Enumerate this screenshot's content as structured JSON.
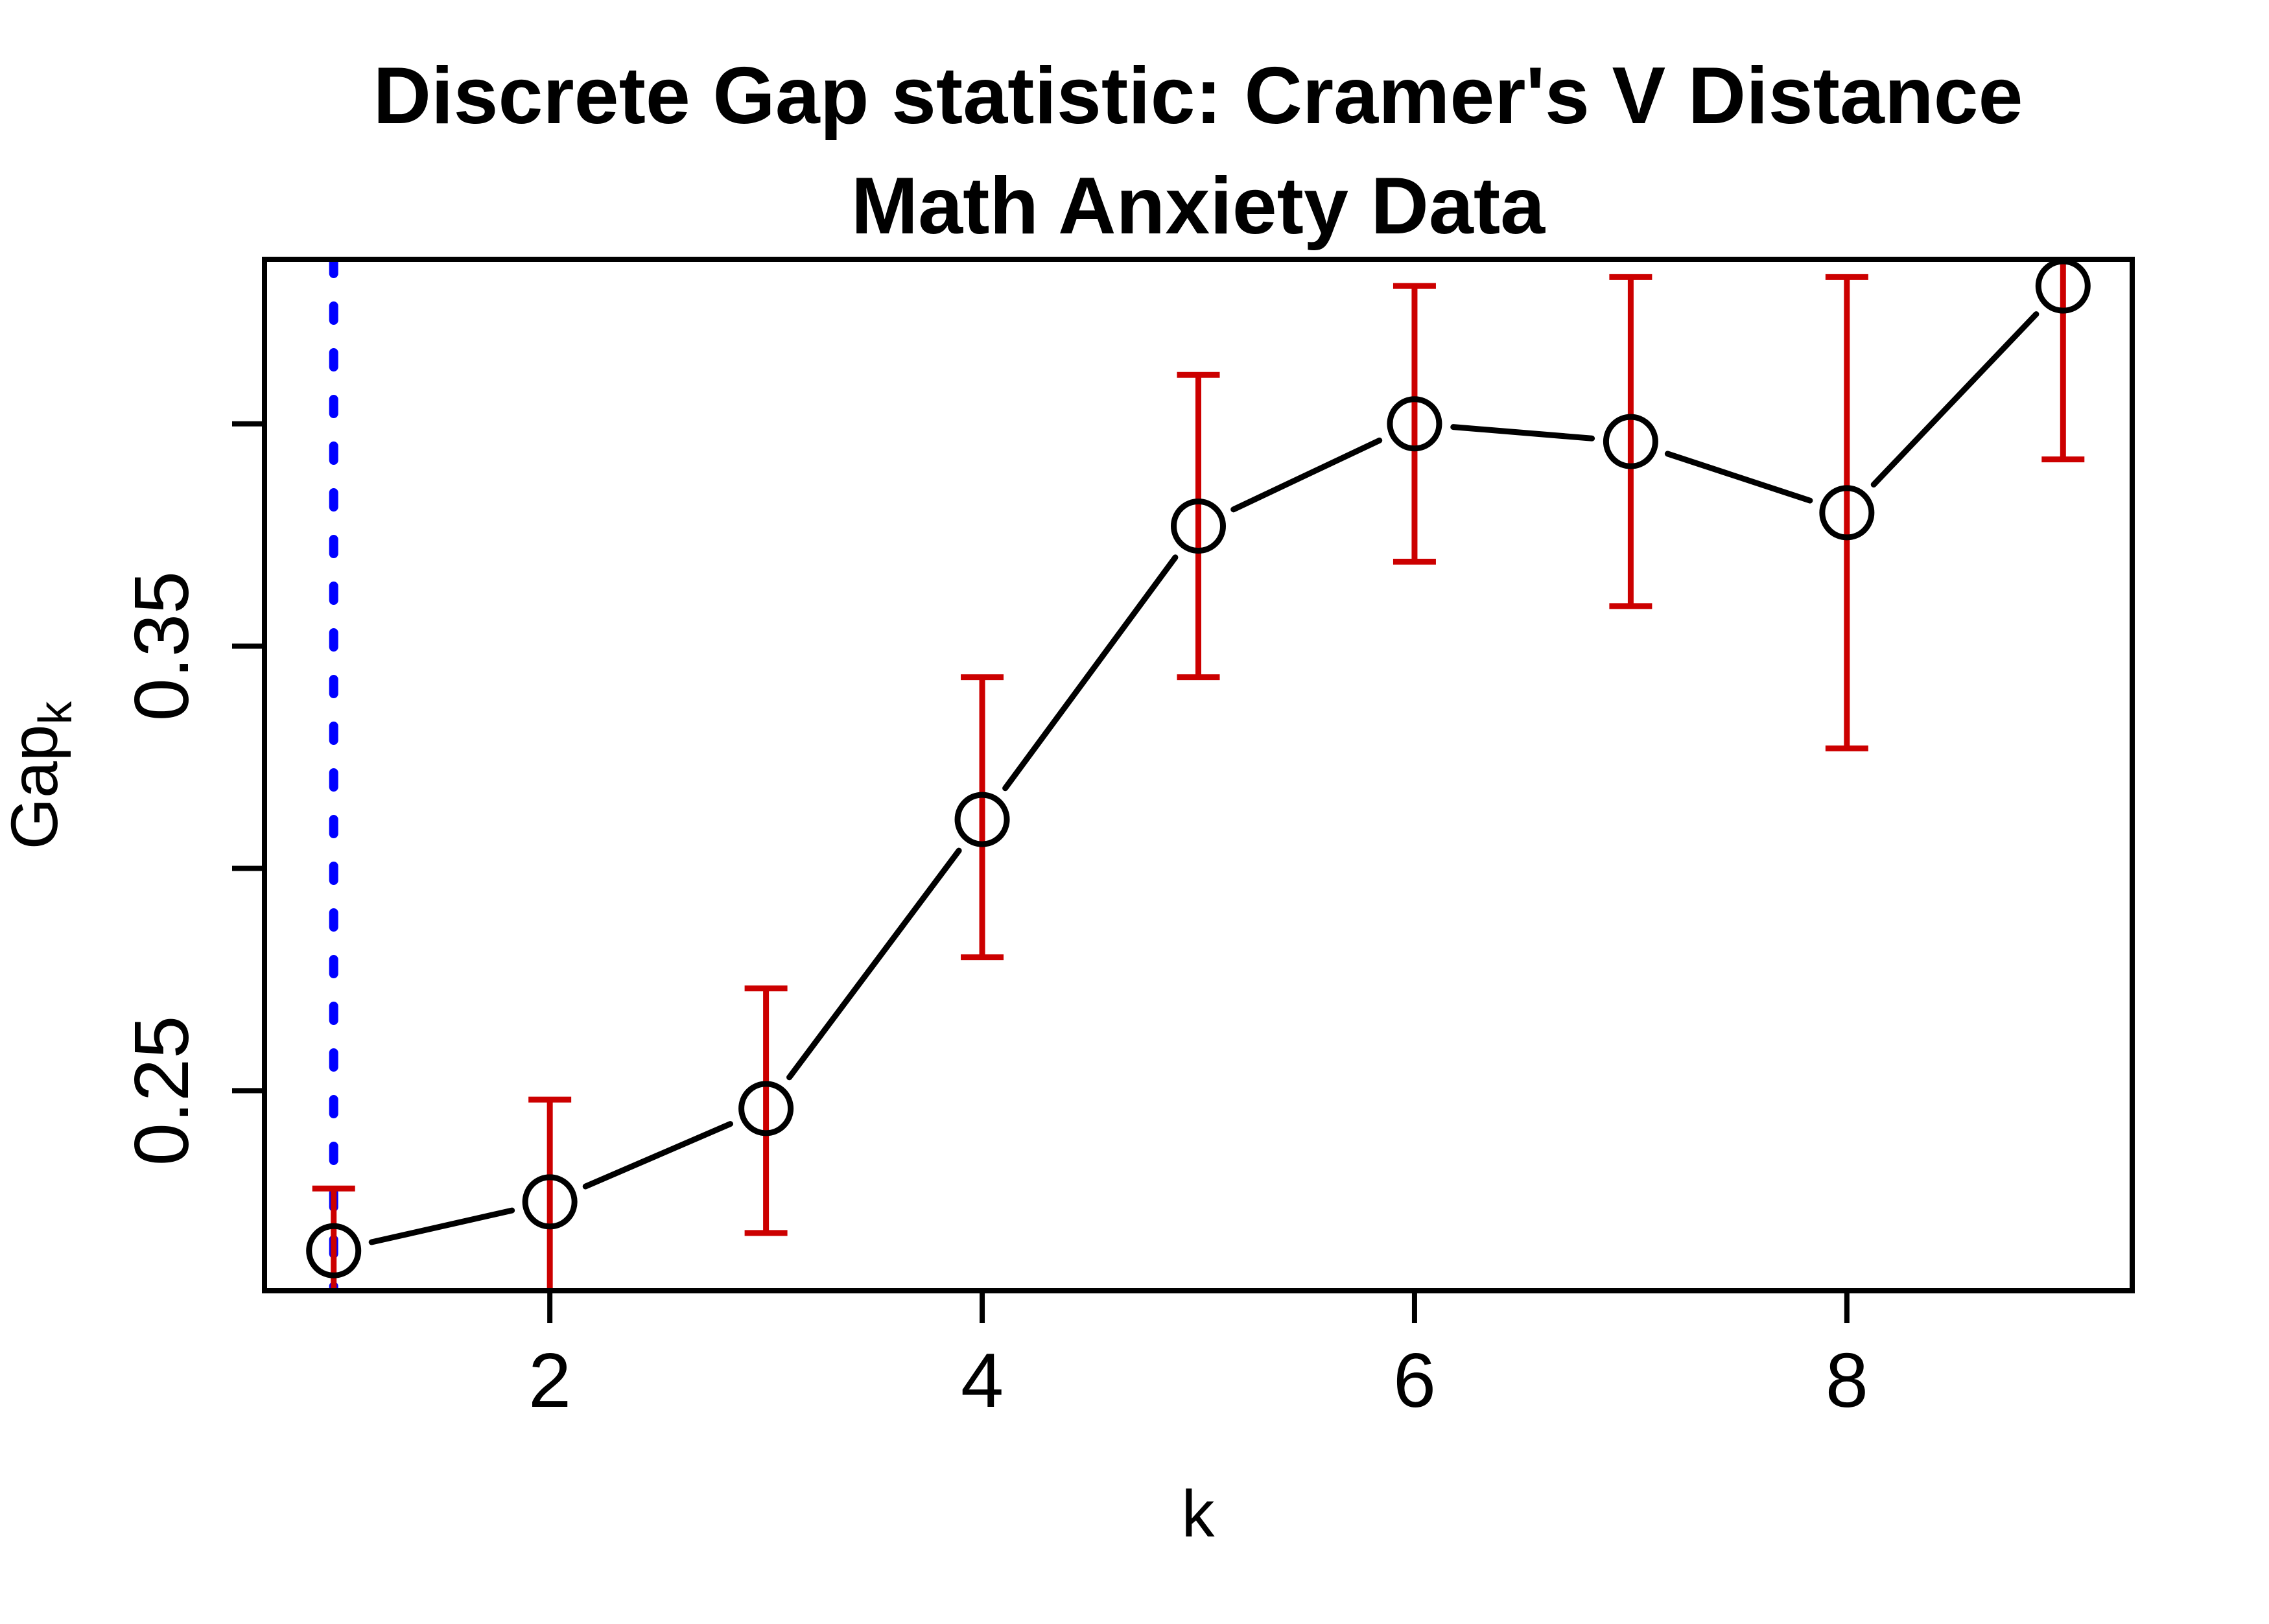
{
  "chart_data": {
    "type": "line",
    "title_line1": "Discrete Gap statistic: Cramer's V Distance",
    "title_line2": "Math Anxiety Data",
    "xlabel": "k",
    "ylabel_main": "Gap",
    "ylabel_sub": "k",
    "x": [
      1,
      2,
      3,
      4,
      5,
      6,
      7,
      8,
      9
    ],
    "values": [
      0.214,
      0.225,
      0.246,
      0.311,
      0.377,
      0.4,
      0.396,
      0.38,
      0.431
    ],
    "upper": [
      0.228,
      0.248,
      0.273,
      0.343,
      0.411,
      0.431,
      0.433,
      0.433,
      0.469
    ],
    "lower": [
      0.199,
      0.201,
      0.218,
      0.28,
      0.343,
      0.369,
      0.359,
      0.327,
      0.392
    ],
    "x_ticks": [
      {
        "v": 2,
        "label": "2"
      },
      {
        "v": 4,
        "label": "4"
      },
      {
        "v": 6,
        "label": "6"
      },
      {
        "v": 8,
        "label": "8"
      }
    ],
    "y_ticks": [
      {
        "v": 0.25,
        "label": "0.25"
      },
      {
        "v": 0.3,
        "label": ""
      },
      {
        "v": 0.35,
        "label": "0.35"
      },
      {
        "v": 0.4,
        "label": ""
      }
    ],
    "xlim": [
      0.68,
      9.32
    ],
    "ylim": [
      0.205,
      0.437
    ],
    "vline_x": 1,
    "marker": "open-circle",
    "line_type": "points-and-segments",
    "vline_style": "dotted",
    "legend_position": "none",
    "grid": "off",
    "colors": {
      "series": "#000000",
      "errorbar": "#CC0000",
      "vline": "#0000FF",
      "background": "#FFFFFF",
      "box": "#000000"
    }
  }
}
